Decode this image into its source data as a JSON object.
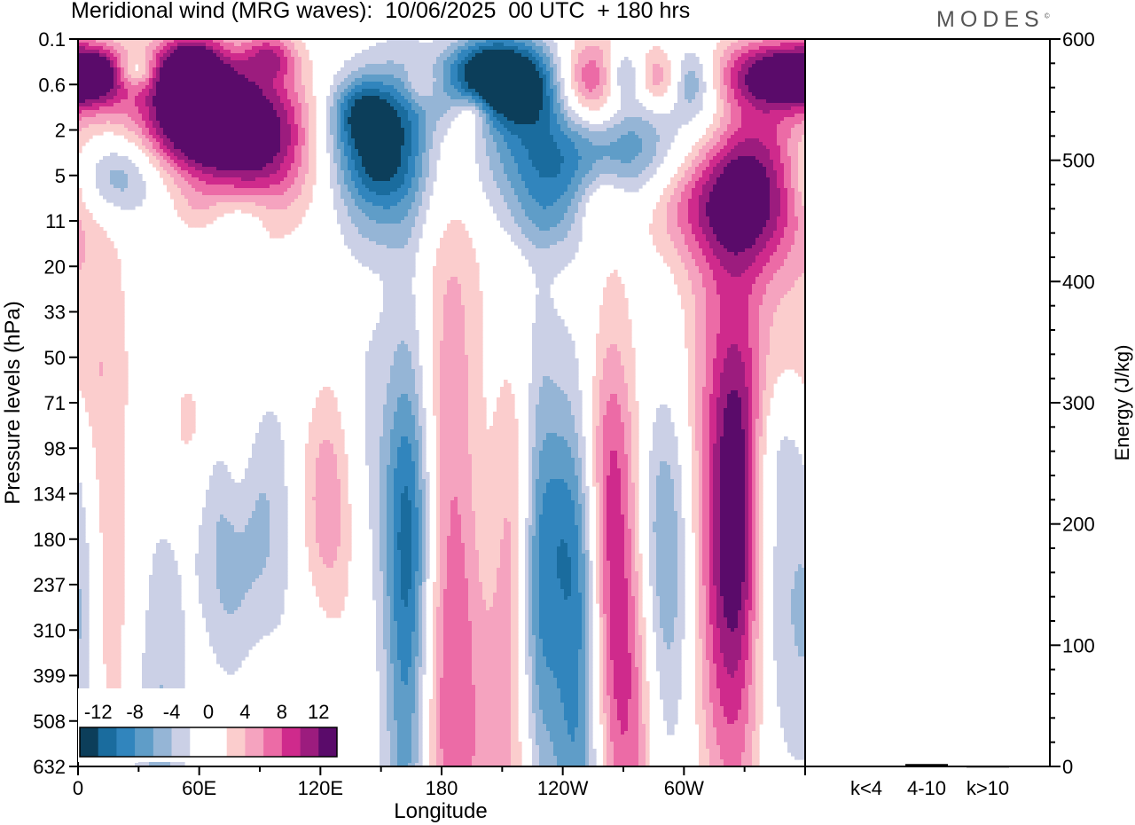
{
  "header": {
    "title": "Meridional wind (MRG waves):  10/06/2025  00 UTC  + 180 hrs",
    "brand": "MODES",
    "brand_mark": "©"
  },
  "colors": {
    "scale": [
      "#0c3e5a",
      "#1a6c9e",
      "#3185bd",
      "#5f9dc8",
      "#95b5d6",
      "#cbd0e6",
      "#ffffff",
      "#ffffff",
      "#fbcdcd",
      "#f5a3bf",
      "#ec6ba6",
      "#cf2a8c",
      "#9c1c7e",
      "#5a0b6a"
    ]
  },
  "chart_data": [
    {
      "type": "heatmap",
      "title": "Meridional wind (MRG waves):  10/06/2025  00 UTC  + 180 hrs",
      "xlabel": "Longitude",
      "ylabel": "Pressure levels (hPa)",
      "x_ticks": [
        "0",
        "60E",
        "120E",
        "180",
        "120W",
        "60W"
      ],
      "x_tick_degrees": [
        0,
        60,
        120,
        180,
        240,
        300
      ],
      "xlim": [
        0,
        360
      ],
      "y_ticks": [
        "0.1",
        "0.6",
        "2",
        "5",
        "11",
        "20",
        "33",
        "50",
        "71",
        "98",
        "134",
        "180",
        "237",
        "310",
        "399",
        "508",
        "632"
      ],
      "colorbar": {
        "tick_labels": [
          "-12",
          "-8",
          "-4",
          "0",
          "4",
          "8",
          "12"
        ],
        "levels": [
          -14,
          -12,
          -10,
          -8,
          -6,
          -4,
          -2,
          0,
          2,
          4,
          6,
          8,
          10,
          12,
          14
        ]
      },
      "blobs": [
        {
          "lon": 8,
          "lev": 0.4,
          "w": 12,
          "h": 0.45,
          "v": 12
        },
        {
          "lon": 28,
          "lev": 0.35,
          "w": 7,
          "h": 0.25,
          "v": -6
        },
        {
          "lon": 55,
          "lev": 0.3,
          "w": 12,
          "h": 0.5,
          "v": 10
        },
        {
          "lon": 55,
          "lev": 1.0,
          "w": 16,
          "h": 0.9,
          "v": 11
        },
        {
          "lon": 80,
          "lev": 2.0,
          "w": 22,
          "h": 1.0,
          "v": 14
        },
        {
          "lon": 95,
          "lev": 0.2,
          "w": 9,
          "h": 0.35,
          "v": 7
        },
        {
          "lon": 30,
          "lev": 1.8,
          "w": 25,
          "h": 0.8,
          "v": 4
        },
        {
          "lon": 18,
          "lev": 4.7,
          "w": 16,
          "h": 0.7,
          "v": -8
        },
        {
          "lon": 105,
          "lev": 3.6,
          "w": 18,
          "h": 1.5,
          "v": 4
        },
        {
          "lon": 140,
          "lev": 1.2,
          "w": 10,
          "h": 0.5,
          "v": -6
        },
        {
          "lon": 148,
          "lev": 2.3,
          "w": 18,
          "h": 0.8,
          "v": -9
        },
        {
          "lon": 160,
          "lev": 2.0,
          "w": 28,
          "h": 1.4,
          "v": -4
        },
        {
          "lon": 148,
          "lev": 5.3,
          "w": 14,
          "h": 0.5,
          "v": -4
        },
        {
          "lon": 170,
          "lev": 0.6,
          "w": 6,
          "h": 0.35,
          "v": 4
        },
        {
          "lon": 195,
          "lev": 1.3,
          "w": 6,
          "h": 0.3,
          "v": 5
        },
        {
          "lon": 187,
          "lev": 1.0,
          "w": 22,
          "h": 0.7,
          "v": -3
        },
        {
          "lon": 190,
          "lev": 2.3,
          "w": 20,
          "h": 0.7,
          "v": 4
        },
        {
          "lon": 218,
          "lev": 0.6,
          "w": 18,
          "h": 0.7,
          "v": -14
        },
        {
          "lon": 200,
          "lev": 0.3,
          "w": 14,
          "h": 0.5,
          "v": -8
        },
        {
          "lon": 236,
          "lev": 2.5,
          "w": 24,
          "h": 1.0,
          "v": -4
        },
        {
          "lon": 220,
          "lev": 3.6,
          "w": 22,
          "h": 0.7,
          "v": -5
        },
        {
          "lon": 254,
          "lev": 0.6,
          "w": 14,
          "h": 0.7,
          "v": 12
        },
        {
          "lon": 270,
          "lev": 0.4,
          "w": 7,
          "h": 0.45,
          "v": -8
        },
        {
          "lon": 290,
          "lev": 0.5,
          "w": 10,
          "h": 0.5,
          "v": 8
        },
        {
          "lon": 302,
          "lev": 0.45,
          "w": 8,
          "h": 0.5,
          "v": -8
        },
        {
          "lon": 345,
          "lev": 0.4,
          "w": 18,
          "h": 0.55,
          "v": 13
        },
        {
          "lon": 306,
          "lev": 1.6,
          "w": 14,
          "h": 0.6,
          "v": -5
        },
        {
          "lon": 275,
          "lev": 2.0,
          "w": 20,
          "h": 0.8,
          "v": -5
        },
        {
          "lon": 300,
          "lev": 2.0,
          "w": 14,
          "h": 0.5,
          "v": 3
        },
        {
          "lon": 333,
          "lev": 5.0,
          "w": 18,
          "h": 1.3,
          "v": 9
        },
        {
          "lon": 275,
          "lev": 5.0,
          "w": 12,
          "h": 0.9,
          "v": -3
        },
        {
          "lon": 330,
          "lev": 10.2,
          "w": 26,
          "h": 1.2,
          "v": 5
        },
        {
          "lon": 300,
          "lev": 8.8,
          "w": 25,
          "h": 0.7,
          "v": 3
        },
        {
          "lon": 225,
          "lev": 10.8,
          "w": 14,
          "h": 0.6,
          "v": -3
        },
        {
          "lon": 240,
          "lev": 7.0,
          "w": 12,
          "h": 0.9,
          "v": -3
        },
        {
          "lon": 148,
          "lev": 11.2,
          "w": 16,
          "h": 0.6,
          "v": -3
        },
        {
          "lon": 80,
          "lev": 10.0,
          "w": 12,
          "h": 0.4,
          "v": -3
        },
        {
          "lon": 258,
          "lev": 8.2,
          "w": 8,
          "h": 0.5,
          "v": 3
        },
        {
          "lon": 60,
          "lev": 9.2,
          "w": 10,
          "h": 0.4,
          "v": 2
        },
        {
          "lon": 345,
          "lev": 50.0,
          "w": 25,
          "h": 1.6,
          "v": 3
        },
        {
          "lon": 250,
          "lev": 97.0,
          "w": 18,
          "h": 1.4,
          "v": 2
        },
        {
          "lon": 349,
          "lev": 97.0,
          "w": 10,
          "h": 0.9,
          "v": -2
        },
        {
          "lon": 5,
          "lev": 98.0,
          "w": 8,
          "h": 2.5,
          "v": 2
        },
        {
          "lon": 55,
          "lev": 85.0,
          "w": 9,
          "h": 1.1,
          "v": 3
        },
        {
          "lon": 79,
          "lev": 82.0,
          "w": 6,
          "h": 2.0,
          "v": 4
        },
        {
          "lon": 140,
          "lev": 90.0,
          "w": 10,
          "h": 2.6,
          "v": -3
        },
        {
          "lon": 121,
          "lev": 144.0,
          "w": 12,
          "h": 2.2,
          "v": 9
        },
        {
          "lon": 165,
          "lev": 160.0,
          "w": 10,
          "h": 2.2,
          "v": -5
        },
        {
          "lon": 98,
          "lev": 165.0,
          "w": 16,
          "h": 2.5,
          "v": -5
        },
        {
          "lon": 75,
          "lev": 190.0,
          "w": 14,
          "h": 2.6,
          "v": -6
        },
        {
          "lon": 40,
          "lev": 200.0,
          "w": 12,
          "h": 4.0,
          "v": 2
        },
        {
          "lon": 186,
          "lev": 270.0,
          "w": 12,
          "h": 6.5,
          "v": 9
        },
        {
          "lon": 163,
          "lev": 360.0,
          "w": 8,
          "h": 5.5,
          "v": -8
        },
        {
          "lon": 200,
          "lev": 130.0,
          "w": 14,
          "h": 3.0,
          "v": -3
        },
        {
          "lon": 222,
          "lev": 140.0,
          "w": 10,
          "h": 2.3,
          "v": 4
        },
        {
          "lon": 240,
          "lev": 135.0,
          "w": 9,
          "h": 2.0,
          "v": -5
        },
        {
          "lon": 227,
          "lev": 205.0,
          "w": 7,
          "h": 3.5,
          "v": -10
        },
        {
          "lon": 215,
          "lev": 400.0,
          "w": 10,
          "h": 5.0,
          "v": 5
        },
        {
          "lon": 247,
          "lev": 390.0,
          "w": 10,
          "h": 4.0,
          "v": -9
        },
        {
          "lon": 263,
          "lev": 220.0,
          "w": 8,
          "h": 3.8,
          "v": 9
        },
        {
          "lon": 275,
          "lev": 470.0,
          "w": 8,
          "h": 4.0,
          "v": 6
        },
        {
          "lon": 287,
          "lev": 150.0,
          "w": 10,
          "h": 2.0,
          "v": -3
        },
        {
          "lon": 293,
          "lev": 250.0,
          "w": 10,
          "h": 3.0,
          "v": -5
        },
        {
          "lon": 318,
          "lev": 235.0,
          "w": 13,
          "h": 4.5,
          "v": 10
        },
        {
          "lon": 327,
          "lev": 140.0,
          "w": 8,
          "h": 2.6,
          "v": 7
        },
        {
          "lon": 346,
          "lev": 255.0,
          "w": 12,
          "h": 3.3,
          "v": -5
        },
        {
          "lon": 314,
          "lev": 520.0,
          "w": 12,
          "h": 4.0,
          "v": -3
        },
        {
          "lon": 330,
          "lev": 420.0,
          "w": 12,
          "h": 4.5,
          "v": 3
        },
        {
          "lon": 15,
          "lev": 300.0,
          "w": 10,
          "h": 6.0,
          "v": 3
        },
        {
          "lon": 3,
          "lev": 235.0,
          "w": 6,
          "h": 3.0,
          "v": -4
        },
        {
          "lon": 28,
          "lev": 390.0,
          "w": 10,
          "h": 3.0,
          "v": 2
        },
        {
          "lon": 38,
          "lev": 560.0,
          "w": 12,
          "h": 5.0,
          "v": -7
        },
        {
          "lon": 62,
          "lev": 390.0,
          "w": 10,
          "h": 5.0,
          "v": 2
        },
        {
          "lon": 88,
          "lev": 320.0,
          "w": 10,
          "h": 5.0,
          "v": 3
        },
        {
          "lon": 115,
          "lev": 320.0,
          "w": 9,
          "h": 5.5,
          "v": -3
        },
        {
          "lon": 110,
          "lev": 470.0,
          "w": 8,
          "h": 4.0,
          "v": 2
        }
      ]
    },
    {
      "type": "bar",
      "title": "",
      "ylabel": "Energy (J/kg)",
      "categories": [
        "k<4",
        "4-10",
        "k>10"
      ],
      "values": [
        0.5,
        2,
        0.2
      ],
      "ylim": [
        0,
        600
      ],
      "y_ticks": [
        "0",
        "100",
        "200",
        "300",
        "400",
        "500",
        "600"
      ]
    }
  ]
}
